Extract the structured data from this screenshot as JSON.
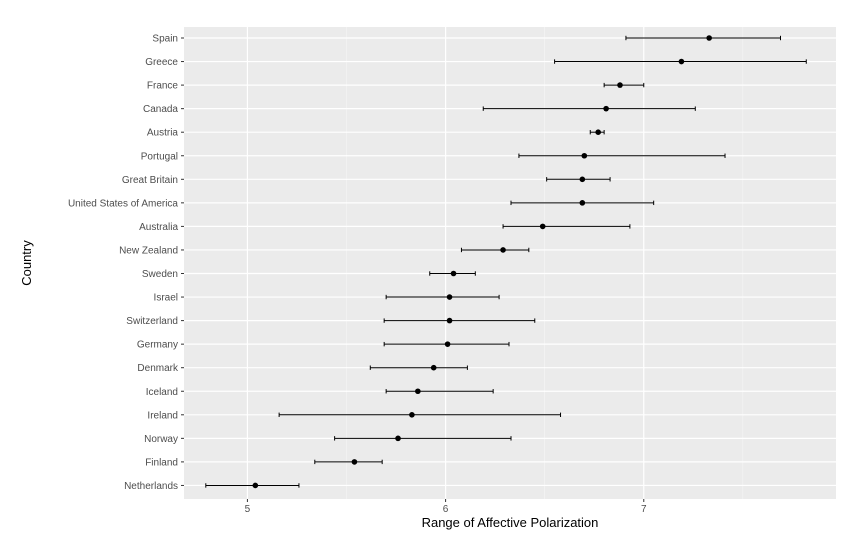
{
  "chart_data": {
    "type": "scatter",
    "subtype": "dot-and-errorbar",
    "title": "",
    "xlabel": "Range of Affective Polarization",
    "ylabel": "Country",
    "xlim": [
      4.68,
      7.97
    ],
    "xticks": [
      5,
      6,
      7
    ],
    "grid": true,
    "legend": "none",
    "colors": {
      "panel": "#ebebeb",
      "grid_major": "#ffffff",
      "grid_minor": "#f5f5f5",
      "point": "#000000",
      "tick_text": "#4d4d4d"
    },
    "categories": [
      "Spain",
      "Greece",
      "France",
      "Canada",
      "Austria",
      "Portugal",
      "Great Britain",
      "United States of America",
      "Australia",
      "New Zealand",
      "Sweden",
      "Israel",
      "Switzerland",
      "Germany",
      "Denmark",
      "Iceland",
      "Ireland",
      "Norway",
      "Finland",
      "Netherlands"
    ],
    "series": [
      {
        "values": [
          7.33,
          7.19,
          6.88,
          6.81,
          6.77,
          6.7,
          6.69,
          6.69,
          6.49,
          6.29,
          6.04,
          6.02,
          6.02,
          6.01,
          5.94,
          5.86,
          5.83,
          5.76,
          5.54,
          5.04
        ],
        "lower": [
          6.91,
          6.55,
          6.8,
          6.19,
          6.73,
          6.37,
          6.51,
          6.33,
          6.29,
          6.08,
          5.92,
          5.7,
          5.69,
          5.69,
          5.62,
          5.7,
          5.16,
          5.44,
          5.34,
          4.79
        ],
        "upper": [
          7.69,
          7.82,
          7.0,
          7.26,
          6.8,
          7.41,
          6.83,
          7.05,
          6.93,
          6.42,
          6.15,
          6.27,
          6.45,
          6.32,
          6.11,
          6.24,
          6.58,
          6.33,
          5.68,
          5.26
        ]
      }
    ]
  }
}
